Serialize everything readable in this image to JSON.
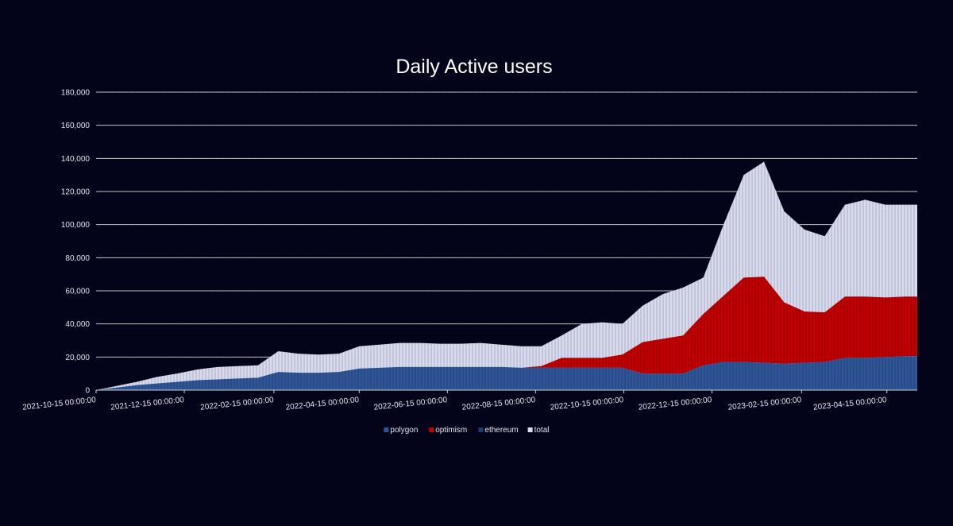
{
  "chart_data": {
    "type": "area",
    "stacked": true,
    "title": "Daily Active users",
    "xlabel": "",
    "ylabel": "",
    "ylim": [
      0,
      180000
    ],
    "y_ticks": [
      "0",
      "20,000",
      "40,000",
      "60,000",
      "80,000",
      "100,000",
      "120,000",
      "140,000",
      "160,000",
      "180,000"
    ],
    "x_ticks": [
      "2021-10-15 00:00:00",
      "2021-12-15 00:00:00",
      "2022-02-15 00:00:00",
      "2022-04-15 00:00:00",
      "2022-06-15 00:00:00",
      "2022-08-15 00:00:00",
      "2022-10-15 00:00:00",
      "2022-12-15 00:00:00",
      "2023-02-15 00:00:00",
      "2023-04-15 00:00:00"
    ],
    "grid": "horizontal",
    "legend_position": "bottom",
    "colors": {
      "polygon": "#2f5597",
      "optimism": "#c00000",
      "ethereum": "#1f3a78",
      "total": "#d9dcef",
      "background": "#03041a",
      "gridline": "#d0d0d0"
    },
    "x": [
      "2021-10-15",
      "2021-10-29",
      "2021-11-12",
      "2021-11-26",
      "2021-12-10",
      "2021-12-24",
      "2022-01-07",
      "2022-01-21",
      "2022-02-04",
      "2022-02-18",
      "2022-03-04",
      "2022-03-18",
      "2022-04-01",
      "2022-04-15",
      "2022-04-29",
      "2022-05-13",
      "2022-05-27",
      "2022-06-10",
      "2022-06-24",
      "2022-07-08",
      "2022-07-22",
      "2022-08-05",
      "2022-08-19",
      "2022-09-02",
      "2022-09-16",
      "2022-09-30",
      "2022-10-14",
      "2022-10-28",
      "2022-11-11",
      "2022-11-25",
      "2022-12-09",
      "2022-12-23",
      "2023-01-06",
      "2023-01-20",
      "2023-02-03",
      "2023-02-17",
      "2023-03-03",
      "2023-03-17",
      "2023-03-31",
      "2023-04-14",
      "2023-04-28",
      "2023-05-06"
    ],
    "series": [
      {
        "name": "polygon",
        "values": [
          0,
          1500,
          3000,
          4000,
          5000,
          6000,
          6500,
          7000,
          7500,
          11000,
          10500,
          10500,
          11000,
          13000,
          13500,
          14000,
          14000,
          14000,
          14000,
          14000,
          14000,
          13500,
          13500,
          13500,
          13500,
          13500,
          13500,
          10000,
          10000,
          10000,
          15000,
          17000,
          17000,
          16500,
          16000,
          16500,
          17000,
          19500,
          19500,
          20000,
          20500,
          20500
        ]
      },
      {
        "name": "optimism",
        "values": [
          0,
          0,
          0,
          0,
          0,
          0,
          0,
          0,
          0,
          0,
          0,
          0,
          0,
          0,
          0,
          0,
          0,
          0,
          0,
          0,
          0,
          0,
          1000,
          6000,
          6000,
          6000,
          8000,
          19000,
          21000,
          23000,
          31000,
          40000,
          51000,
          52000,
          37000,
          31000,
          30000,
          37000,
          37000,
          36000,
          36000,
          36000
        ]
      },
      {
        "name": "ethereum",
        "values": [
          0,
          0,
          0,
          0,
          0,
          0,
          0,
          0,
          0,
          0,
          0,
          0,
          0,
          0,
          0,
          0,
          0,
          0,
          0,
          0,
          0,
          0,
          0,
          0,
          0,
          0,
          0,
          0,
          0,
          0,
          0,
          0,
          0,
          0,
          0,
          0,
          0,
          0,
          0,
          0,
          0,
          0
        ]
      },
      {
        "name": "total",
        "values": [
          0,
          2500,
          5000,
          8000,
          10000,
          12500,
          14000,
          14500,
          15000,
          23500,
          22000,
          21500,
          22000,
          26500,
          27500,
          28500,
          28500,
          28000,
          28000,
          28500,
          27500,
          26500,
          26500,
          33000,
          40000,
          41000,
          40000,
          51000,
          58000,
          62000,
          68000,
          100000,
          130000,
          138000,
          108000,
          97000,
          93000,
          112000,
          115000,
          112000,
          112000,
          112000
        ]
      }
    ]
  }
}
